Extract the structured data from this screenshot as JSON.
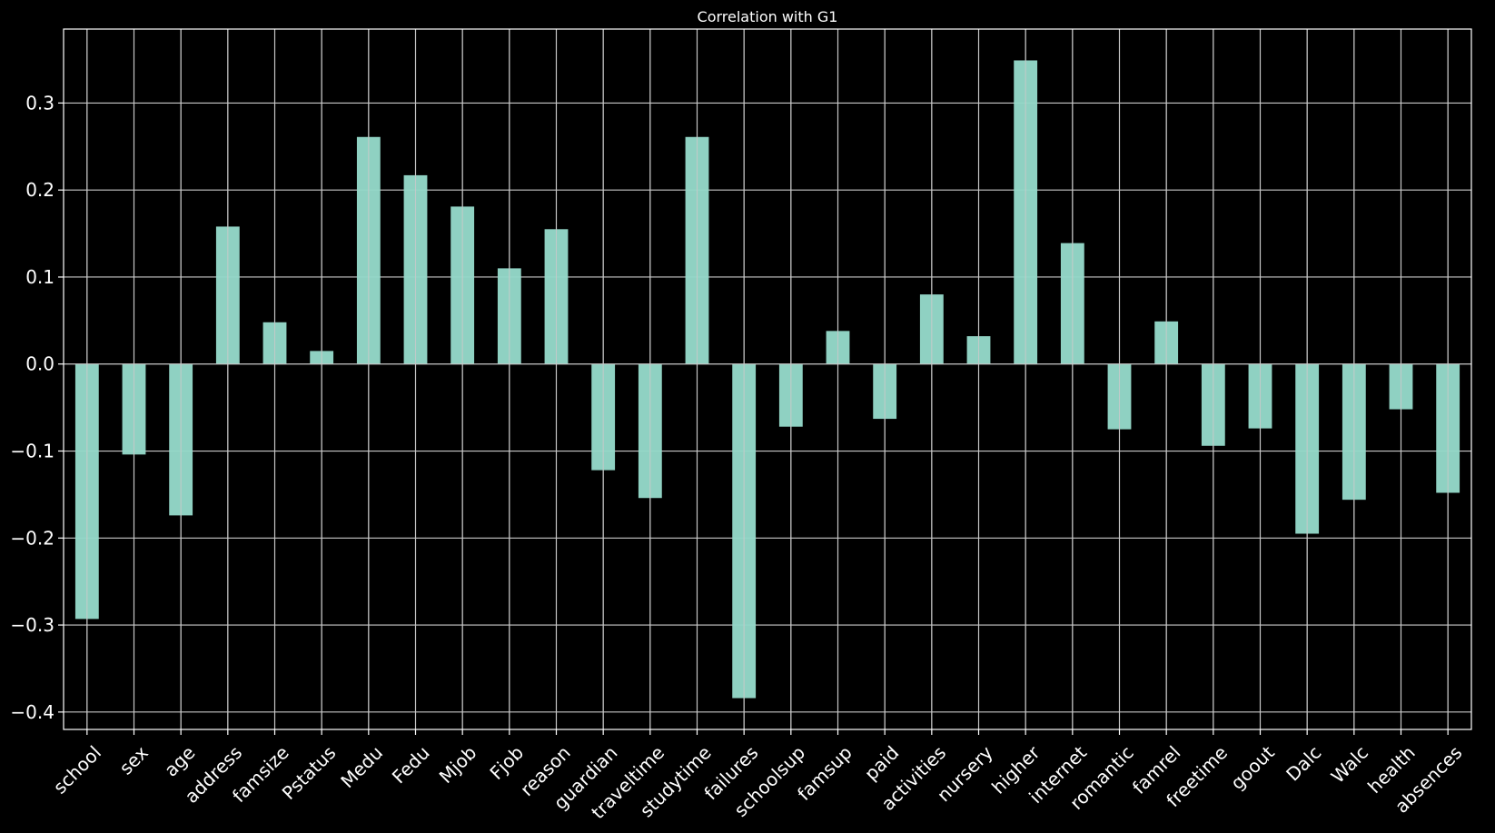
{
  "chart_data": {
    "type": "bar",
    "title": "Correlation with G1",
    "xlabel": "",
    "ylabel": "",
    "grid": true,
    "ylim": [
      -0.42,
      0.385
    ],
    "yticks": [
      -0.4,
      -0.3,
      -0.2,
      -0.1,
      0.0,
      0.1,
      0.2,
      0.3
    ],
    "ytick_labels": [
      "−0.4",
      "−0.3",
      "−0.2",
      "−0.1",
      "0.0",
      "0.1",
      "0.2",
      "0.3"
    ],
    "categories": [
      "school",
      "sex",
      "age",
      "address",
      "famsize",
      "Pstatus",
      "Medu",
      "Fedu",
      "Mjob",
      "Fjob",
      "reason",
      "guardian",
      "traveltime",
      "studytime",
      "failures",
      "schoolsup",
      "famsup",
      "paid",
      "activities",
      "nursery",
      "higher",
      "internet",
      "romantic",
      "famrel",
      "freetime",
      "goout",
      "Dalc",
      "Walc",
      "health",
      "absences"
    ],
    "values": [
      -0.293,
      -0.104,
      -0.174,
      0.158,
      0.048,
      0.015,
      0.261,
      0.217,
      0.181,
      0.11,
      0.155,
      -0.122,
      -0.154,
      0.261,
      -0.384,
      -0.072,
      0.038,
      -0.063,
      0.08,
      0.032,
      0.349,
      0.139,
      -0.075,
      0.049,
      -0.094,
      -0.074,
      -0.195,
      -0.156,
      -0.052,
      -0.148
    ],
    "colors": {
      "bar": "#94d8c8",
      "grid": "#c8c8c8",
      "axis": "#ffffff",
      "background": "#000000"
    }
  }
}
